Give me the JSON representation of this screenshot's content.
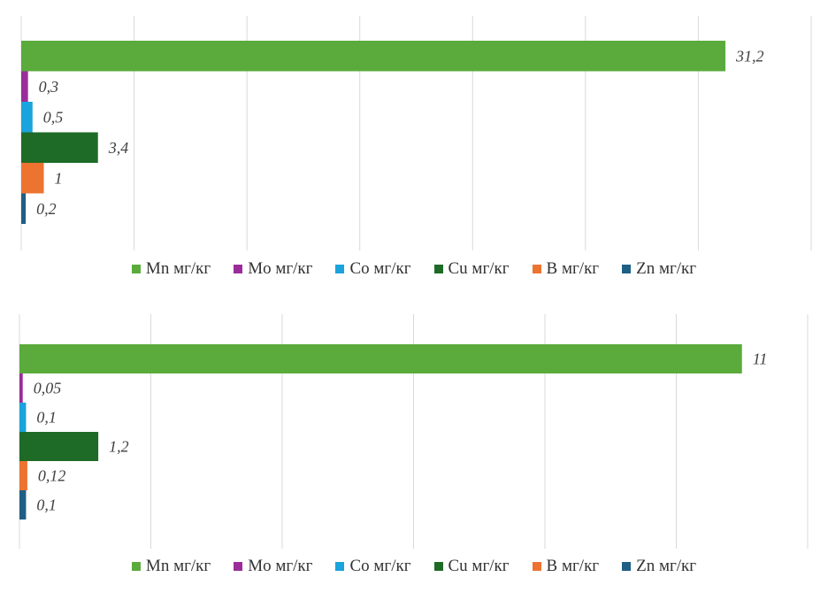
{
  "chart_data": [
    {
      "type": "bar",
      "orientation": "horizontal",
      "categories": [
        "Mn мг/кг",
        "Mo мг/кг",
        "Co мг/кг",
        "Cu мг/кг",
        "B мг/кг",
        "Zn мг/кг"
      ],
      "values": [
        31.2,
        0.3,
        0.5,
        3.4,
        1,
        0.2
      ],
      "data_labels": [
        "31,2",
        "0,3",
        "0,5",
        "3,4",
        "1",
        "0,2"
      ],
      "colors": [
        "#5aab3c",
        "#9b2d9b",
        "#1aa3dc",
        "#1e6b27",
        "#ed7331",
        "#1f5f86"
      ],
      "xlim": [
        0,
        35
      ],
      "grid": "vertical",
      "legend": "bottom"
    },
    {
      "type": "bar",
      "orientation": "horizontal",
      "categories": [
        "Mn мг/кг",
        "Mo мг/кг",
        "Co мг/кг",
        "Cu мг/кг",
        "B мг/кг",
        "Zn мг/кг"
      ],
      "values": [
        11,
        0.05,
        0.1,
        1.2,
        0.12,
        0.1
      ],
      "data_labels": [
        "11",
        "0,05",
        "0,1",
        "1,2",
        "0,12",
        "0,1"
      ],
      "colors": [
        "#5aab3c",
        "#9b2d9b",
        "#1aa3dc",
        "#1e6b27",
        "#ed7331",
        "#1f5f86"
      ],
      "xlim": [
        0,
        12
      ],
      "grid": "vertical",
      "legend": "bottom"
    }
  ]
}
